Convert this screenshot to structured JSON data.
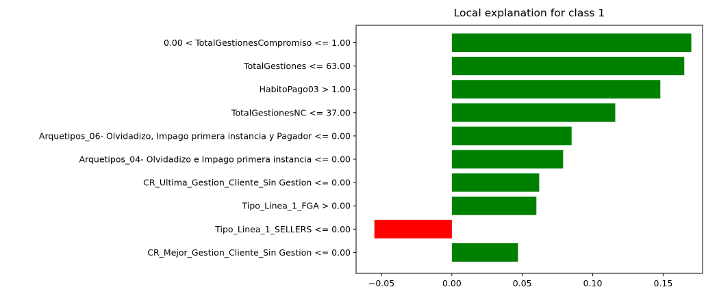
{
  "chart_data": {
    "type": "bar",
    "orientation": "horizontal",
    "title": "Local explanation for class 1",
    "xlabel": "",
    "ylabel": "",
    "categories": [
      "0.00 < TotalGestionesCompromiso <= 1.00",
      "TotalGestiones <= 63.00",
      "HabitoPago03 > 1.00",
      "TotalGestionesNC <= 37.00",
      "Arquetipos_06- Olvidadizo, Impago primera instancia y Pagador <= 0.00",
      "Arquetipos_04- Olvidadizo e Impago primera instancia <= 0.00",
      "CR_Ultima_Gestion_Cliente_Sin Gestion <= 0.00",
      "Tipo_Linea_1_FGA > 0.00",
      "Tipo_Linea_1_SELLERS <= 0.00",
      "CR_Mejor_Gestion_Cliente_Sin Gestion <= 0.00"
    ],
    "values": [
      0.17,
      0.165,
      0.148,
      0.116,
      0.085,
      0.079,
      0.062,
      0.06,
      -0.055,
      0.047
    ],
    "xlim": [
      -0.068,
      0.178
    ],
    "xticks": [
      -0.05,
      0.0,
      0.05,
      0.1,
      0.15
    ],
    "xtick_labels": [
      "−0.05",
      "0.00",
      "0.05",
      "0.10",
      "0.15"
    ],
    "grid": false,
    "colors": {
      "positive": "#008000",
      "negative": "#ff0000"
    }
  }
}
